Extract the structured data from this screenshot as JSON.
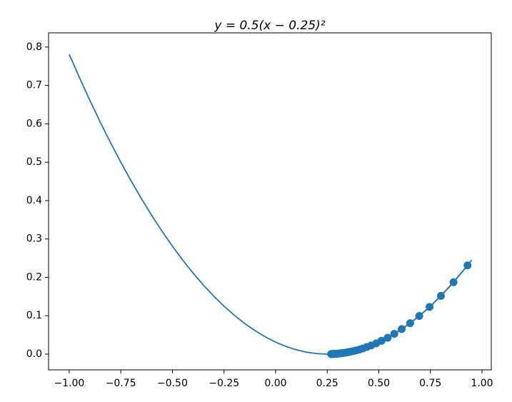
{
  "chart_data": {
    "type": "line",
    "title": "y = 0.5(x − 0.25)²",
    "xlim": [
      -1.1,
      1.045
    ],
    "ylim": [
      -0.041,
      0.837
    ],
    "xticks": [
      {
        "value": -1,
        "label": "−1.00"
      },
      {
        "value": -0.75,
        "label": "−0.75"
      },
      {
        "value": -0.5,
        "label": "−0.50"
      },
      {
        "value": -0.25,
        "label": "−0.25"
      },
      {
        "value": 0,
        "label": "0.00"
      },
      {
        "value": 0.25,
        "label": "0.25"
      },
      {
        "value": 0.5,
        "label": "0.50"
      },
      {
        "value": 0.75,
        "label": "0.75"
      },
      {
        "value": 1,
        "label": "1.00"
      }
    ],
    "yticks": [
      {
        "value": 0,
        "label": "0.0"
      },
      0.1,
      0.2,
      0.3,
      0.4,
      0.5,
      0.6,
      0.7,
      0.8
    ],
    "grid": false,
    "series": [
      {
        "color": "#1f77b4",
        "marker": false,
        "x": [
          -1.0,
          -0.95,
          -0.9,
          -0.85,
          -0.8,
          -0.75,
          -0.7,
          -0.65,
          -0.6,
          -0.55,
          -0.5,
          -0.45,
          -0.4,
          -0.35,
          -0.3,
          -0.25,
          -0.2,
          -0.15,
          -0.1,
          -0.05,
          0,
          0.05,
          0.1,
          0.15,
          0.2,
          0.25,
          0.3,
          0.35,
          0.4,
          0.45,
          0.5,
          0.55,
          0.6,
          0.65,
          0.7,
          0.75,
          0.8,
          0.85,
          0.9,
          0.95
        ],
        "values": [
          0.78125,
          0.72,
          0.66125,
          0.605,
          0.55125,
          0.5,
          0.45125,
          0.405,
          0.36125,
          0.32,
          0.28125,
          0.245,
          0.21125,
          0.18,
          0.15125,
          0.125,
          0.10125,
          0.08,
          0.06125,
          0.045,
          0.03125,
          0.02,
          0.01125,
          0.005,
          0.00125,
          0,
          0.00125,
          0.005,
          0.01125,
          0.02,
          0.03125,
          0.045,
          0.06125,
          0.08,
          0.10125,
          0.125,
          0.15125,
          0.18,
          0.21125,
          0.245
        ]
      },
      {
        "color": "#1f77b4",
        "marker": true,
        "x": [
          0.93,
          0.862,
          0.801,
          0.746,
          0.696,
          0.652,
          0.611,
          0.575,
          0.543,
          0.513,
          0.487,
          0.463,
          0.442,
          0.423,
          0.406,
          0.39,
          0.376,
          0.363,
          0.352,
          0.342,
          0.333,
          0.324,
          0.317,
          0.31,
          0.304,
          0.299,
          0.294,
          0.29,
          0.286,
          0.282,
          0.279,
          0.276,
          0.273,
          0.271,
          0.269
        ],
        "values": [
          0.2312,
          0.1873,
          0.1517,
          0.1229,
          0.0995,
          0.0806,
          0.0653,
          0.0529,
          0.0428,
          0.0347,
          0.0281,
          0.0228,
          0.0185,
          0.0149,
          0.0121,
          0.0098,
          0.0079,
          0.0064,
          0.0052,
          0.0042,
          0.0034,
          0.0028,
          0.0022,
          0.0018,
          0.0015,
          0.0012,
          0.001,
          0.0008,
          0.0006,
          0.0005,
          0.0004,
          0.0003,
          0.0003,
          0.0002,
          0.0002
        ]
      }
    ]
  }
}
